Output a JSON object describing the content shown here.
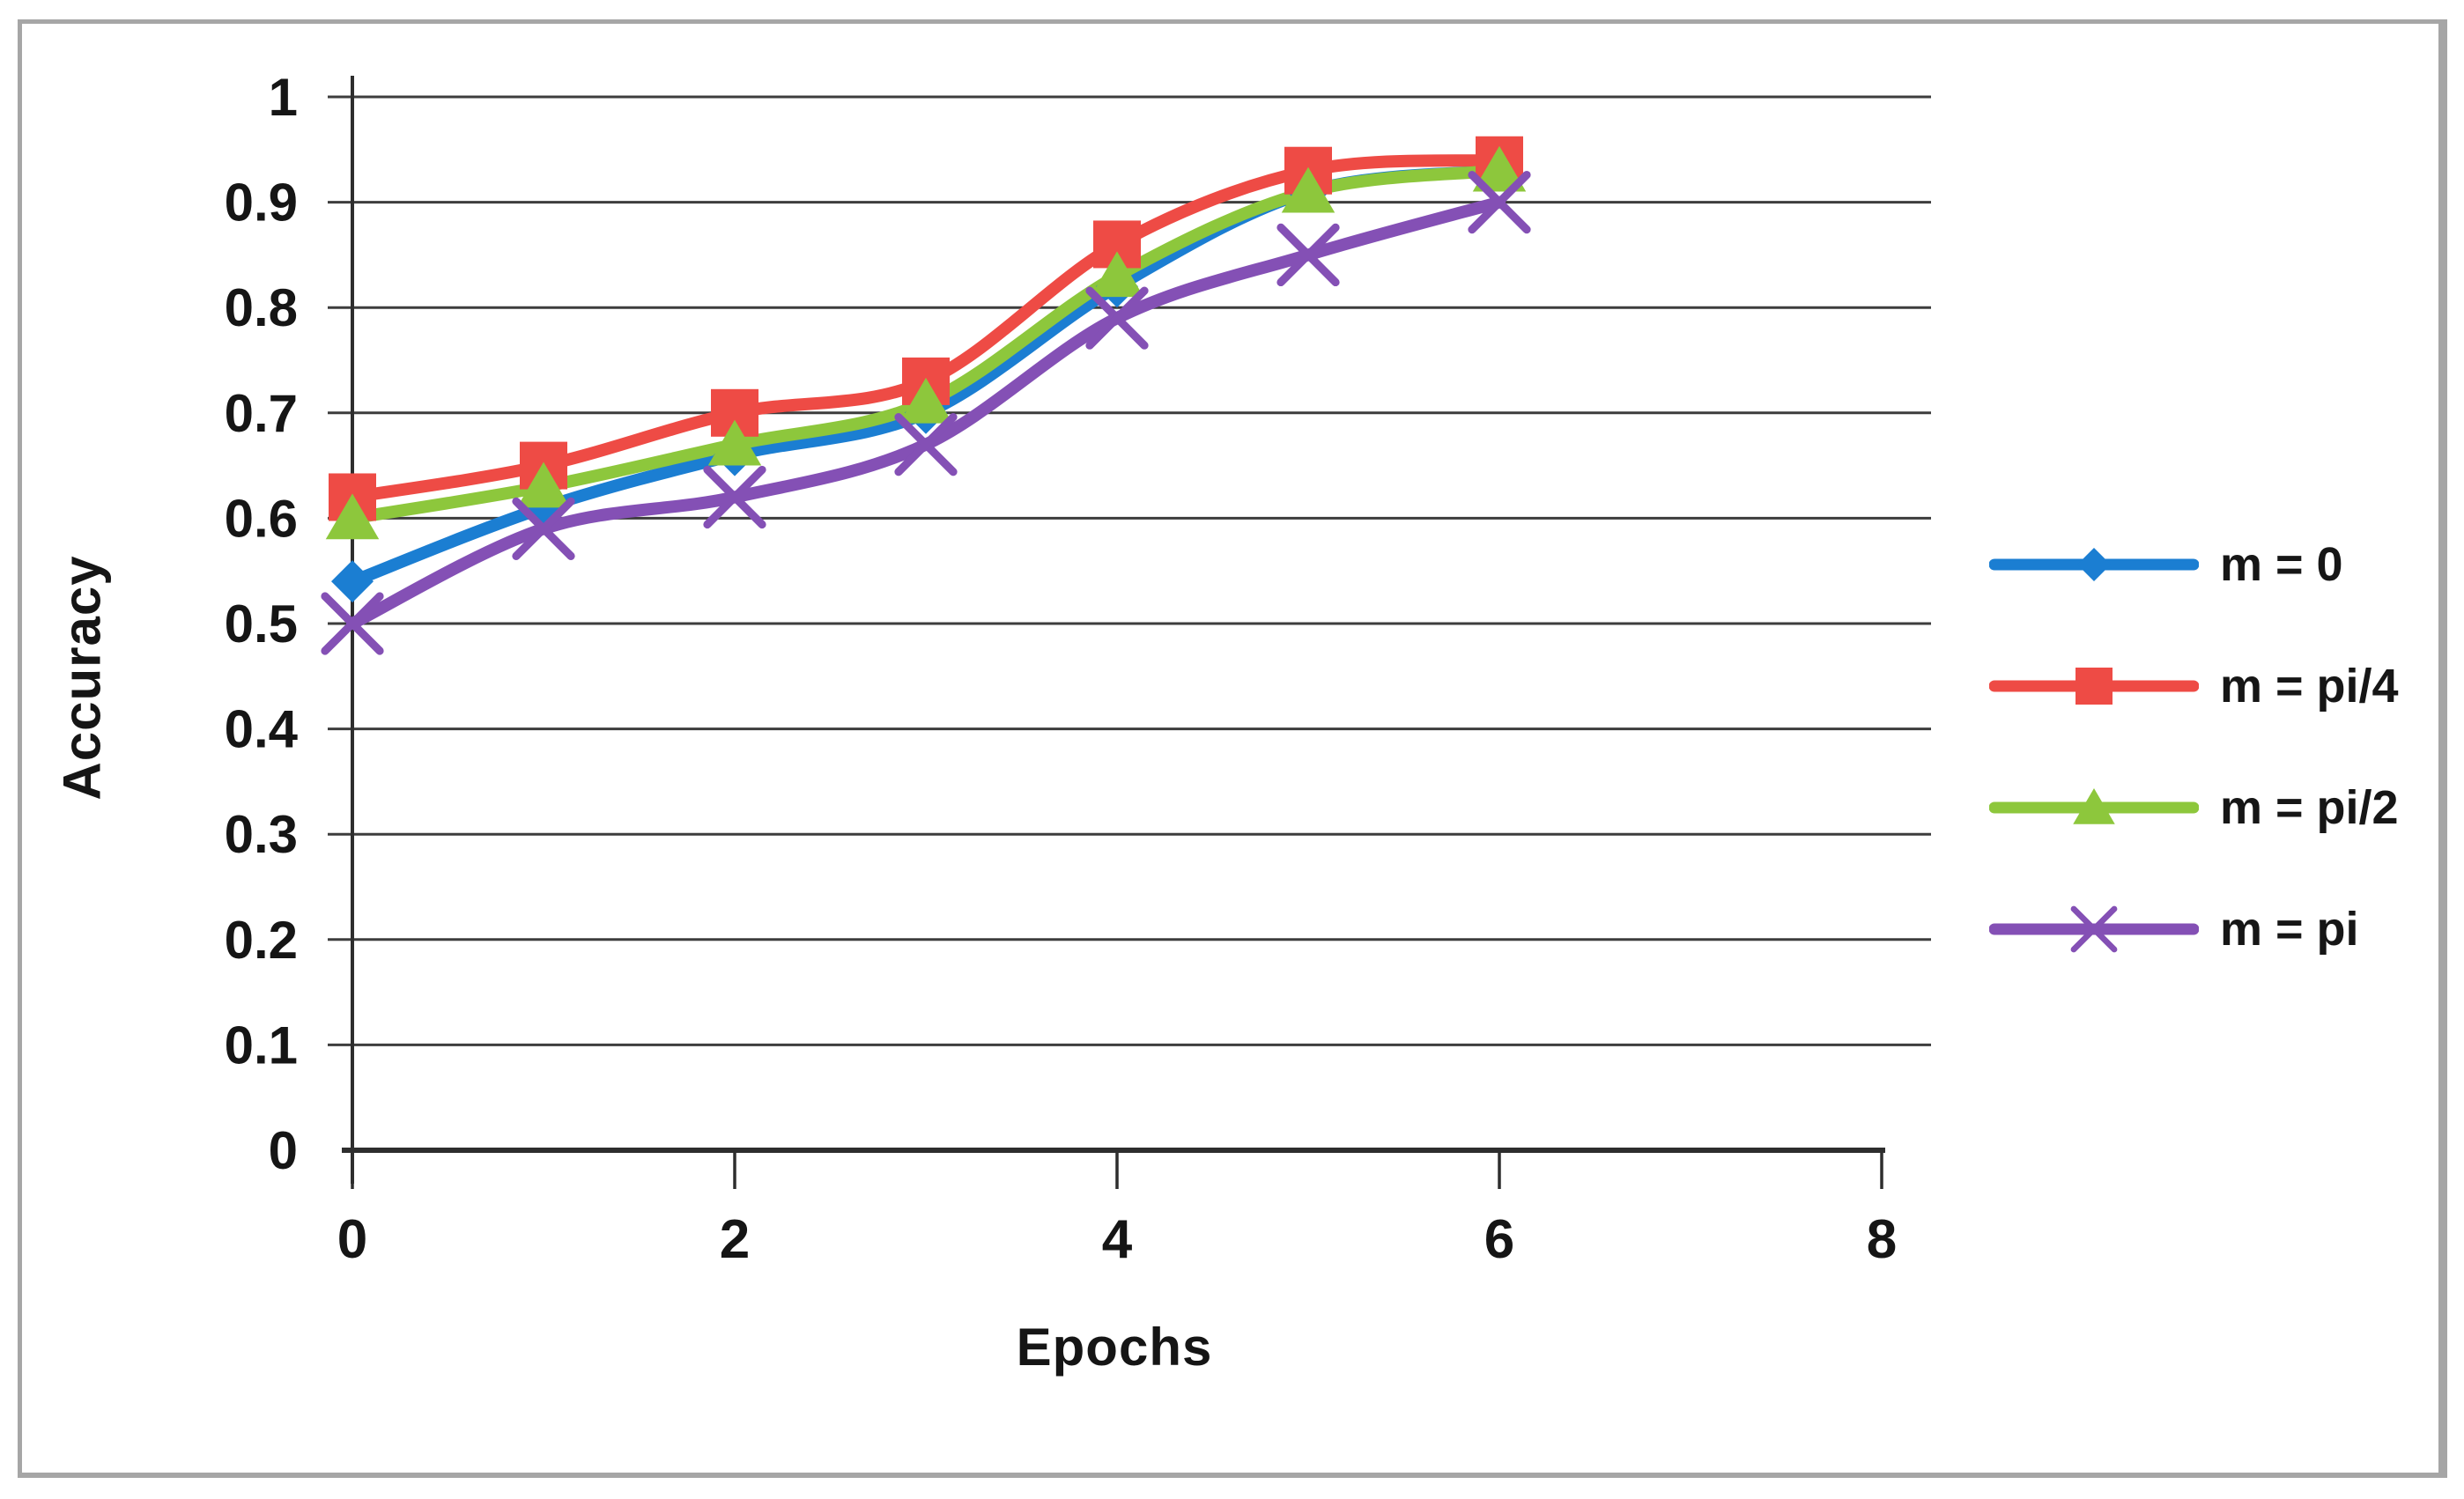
{
  "chart_data": {
    "type": "line",
    "title": "",
    "xlabel": "Epochs",
    "ylabel": "Accuracy",
    "x": [
      0,
      1,
      2,
      3,
      4,
      5,
      6
    ],
    "xlim": [
      0,
      8
    ],
    "ylim": [
      0,
      1
    ],
    "x_tick_values": [
      0,
      2,
      4,
      6,
      8
    ],
    "x_tick_labels": [
      "0",
      "2",
      "4",
      "6",
      "8"
    ],
    "y_tick_values": [
      0,
      0.1,
      0.2,
      0.3,
      0.4,
      0.5,
      0.6,
      0.7,
      0.8,
      0.9,
      1
    ],
    "y_tick_labels": [
      "0",
      "0.1",
      "0.2",
      "0.3",
      "0.4",
      "0.5",
      "0.6",
      "0.7",
      "0.8",
      "0.9",
      "1"
    ],
    "grid": "horizontal",
    "line_style": "smooth",
    "legend_position": "right",
    "series": [
      {
        "name": "m = 0",
        "color": "#1b7ed2",
        "marker": "diamond",
        "values": [
          0.54,
          0.61,
          0.66,
          0.7,
          0.82,
          0.91,
          0.93
        ]
      },
      {
        "name": "m = pi/4",
        "color": "#ee4b45",
        "marker": "square",
        "values": [
          0.62,
          0.65,
          0.7,
          0.73,
          0.86,
          0.93,
          0.94
        ]
      },
      {
        "name": "m = pi/2",
        "color": "#8dc73c",
        "marker": "triangle",
        "values": [
          0.6,
          0.63,
          0.67,
          0.71,
          0.83,
          0.91,
          0.93
        ]
      },
      {
        "name": "m = pi",
        "color": "#8450b5",
        "marker": "x",
        "values": [
          0.5,
          0.59,
          0.62,
          0.67,
          0.79,
          0.85,
          0.9
        ]
      }
    ]
  },
  "legend": {
    "items": [
      {
        "label": "m = 0"
      },
      {
        "label": "m = pi/4"
      },
      {
        "label": "m = pi/2"
      },
      {
        "label": "m = pi"
      }
    ]
  },
  "colors": {
    "axis": "#2e2e2e",
    "grid": "#3d3d3d",
    "tick_text": "#151515",
    "frame_border": "#a6a6a6",
    "background": "#ffffff"
  }
}
